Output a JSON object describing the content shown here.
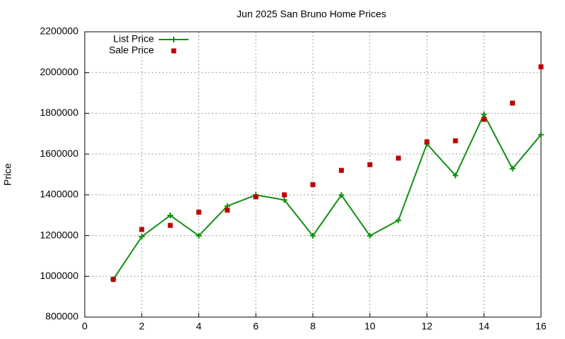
{
  "chart_data": {
    "type": "line",
    "title": "Jun 2025 San Bruno Home Prices",
    "y_label": "Price",
    "x": [
      1,
      2,
      3,
      4,
      5,
      6,
      7,
      8,
      9,
      10,
      11,
      12,
      13,
      14,
      15,
      16
    ],
    "series": [
      {
        "name": "List Price",
        "color": "#109010",
        "style": "line-cross",
        "values": [
          985000,
          1195000,
          1299000,
          1199000,
          1345000,
          1399000,
          1375000,
          1199000,
          1399000,
          1199000,
          1275000,
          1650000,
          1495000,
          1795000,
          1528000,
          1695000
        ]
      },
      {
        "name": "Sale Price",
        "color": "#c00000",
        "style": "square",
        "values": [
          985000,
          1230000,
          1250000,
          1315000,
          1325000,
          1390000,
          1400000,
          1450000,
          1520000,
          1548000,
          1580000,
          1660000,
          1665000,
          1770000,
          1850000,
          2028000
        ]
      }
    ],
    "xlim": [
      0,
      16
    ],
    "xticks": [
      0,
      2,
      4,
      6,
      8,
      10,
      12,
      14,
      16
    ],
    "ylim": [
      800000,
      2200000
    ],
    "yticks": [
      800000,
      1000000,
      1200000,
      1400000,
      1600000,
      1800000,
      2000000,
      2200000
    ],
    "grid": true,
    "legend": "top-left"
  }
}
